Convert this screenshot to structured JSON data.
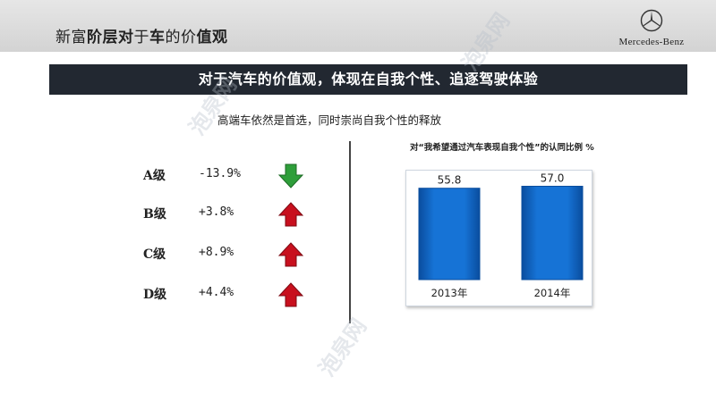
{
  "header": {
    "title_parts": [
      {
        "text": "新富",
        "weight": "thin"
      },
      {
        "text": "阶层对",
        "weight": "bold"
      },
      {
        "text": "于",
        "weight": "thin"
      },
      {
        "text": "车",
        "weight": "bold"
      },
      {
        "text": "的价",
        "weight": "thin"
      },
      {
        "text": "值观",
        "weight": "bold"
      }
    ],
    "brand_name": "Mercedes-Benz"
  },
  "banner": "对于汽车的价值观，体现在自我个性、追逐驾驶体验",
  "subtitle": "高端车依然是首选，同时崇尚自我个性的释放",
  "segments": [
    {
      "class": "A级",
      "change": "-13.9%",
      "direction": "down",
      "arrow": "down-arrow-icon",
      "color": "#2e9e3a"
    },
    {
      "class": "B级",
      "change": "+3.8%",
      "direction": "up",
      "arrow": "up-arrow-icon",
      "color": "#c8101e"
    },
    {
      "class": "C级",
      "change": "+8.9%",
      "direction": "up",
      "arrow": "up-arrow-icon",
      "color": "#c8101e"
    },
    {
      "class": "D级",
      "change": "+4.4%",
      "direction": "up",
      "arrow": "up-arrow-icon",
      "color": "#c8101e"
    }
  ],
  "colors": {
    "banner": "#222831",
    "bar": "#1673d6",
    "bar_dark": "#0a4d9e",
    "arrow_up": "#c8101e",
    "arrow_down": "#2e9e3a"
  },
  "chart_data": {
    "type": "bar",
    "title": "对“我希望通过汽车表现自我个性”的认同比例 %",
    "categories": [
      "2013年",
      "2014年"
    ],
    "values": [
      55.8,
      57.0
    ],
    "data_labels": [
      "55.8",
      "57.0"
    ],
    "ylim": [
      0,
      60
    ],
    "grid": false,
    "legend": "none"
  },
  "watermark": "泡泉网"
}
